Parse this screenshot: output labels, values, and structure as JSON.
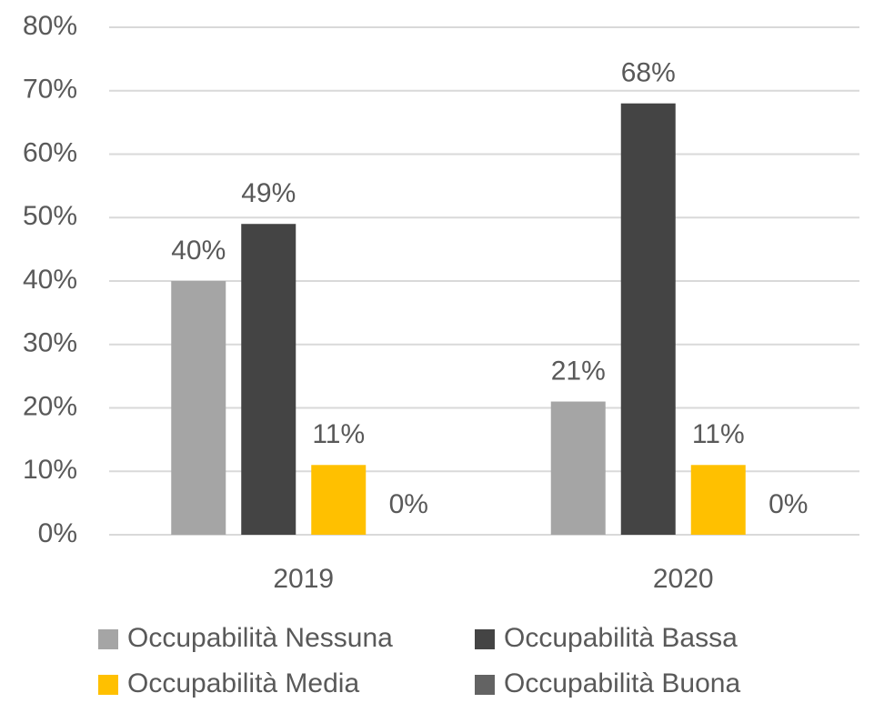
{
  "chart_data": {
    "type": "bar",
    "categories": [
      "2019",
      "2020"
    ],
    "series": [
      {
        "name": "Occupabilità Nessuna",
        "color": "#a5a5a5",
        "values": [
          40,
          21
        ],
        "value_labels": [
          "40%",
          "21%"
        ]
      },
      {
        "name": "Occupabilità Bassa",
        "color": "#444444",
        "values": [
          49,
          68
        ],
        "value_labels": [
          "49%",
          "68%"
        ]
      },
      {
        "name": "Occupabilità Media",
        "color": "#ffc000",
        "values": [
          11,
          11
        ],
        "value_labels": [
          "11%",
          "11%"
        ]
      },
      {
        "name": "Occupabilità Buona",
        "color": "#636363",
        "values": [
          0,
          0
        ],
        "value_labels": [
          "0%",
          "0%"
        ]
      }
    ],
    "ylim": [
      0,
      80
    ],
    "yticks": [
      {
        "value": 0,
        "label": "0%"
      },
      {
        "value": 10,
        "label": "10%"
      },
      {
        "value": 20,
        "label": "20%"
      },
      {
        "value": 30,
        "label": "30%"
      },
      {
        "value": 40,
        "label": "40%"
      },
      {
        "value": 50,
        "label": "50%"
      },
      {
        "value": 60,
        "label": "60%"
      },
      {
        "value": 70,
        "label": "70%"
      },
      {
        "value": 80,
        "label": "80%"
      }
    ],
    "grid": true,
    "legend": "bottom"
  }
}
